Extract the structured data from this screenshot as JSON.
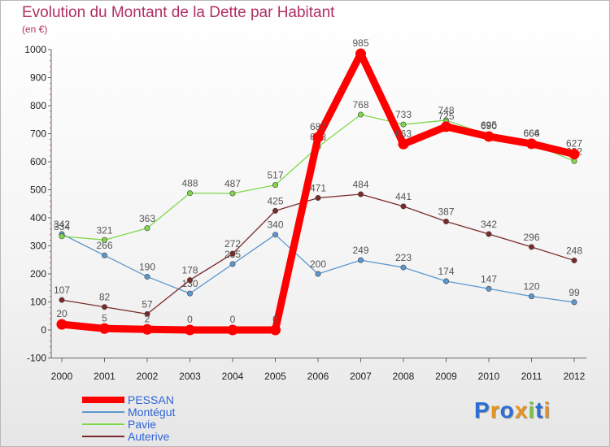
{
  "title": "Evolution du Montant de la Dette par Habitant",
  "unit": "(en €)",
  "logo": {
    "text": "Proxiti",
    "colors": [
      "#2a6fd6",
      "#e8941a",
      "#2a6fd6",
      "#e8941a",
      "#7cc242",
      "#2a6fd6",
      "#e8941a"
    ]
  },
  "chart_data": {
    "type": "line",
    "title": "Evolution du Montant de la Dette par Habitant",
    "ylabel": "(en €)",
    "xlabel": "",
    "x": [
      "2000",
      "2001",
      "2002",
      "2003",
      "2004",
      "2005",
      "2006",
      "2007",
      "2008",
      "2009",
      "2010",
      "2011",
      "2012"
    ],
    "ylim": [
      -100,
      1000
    ],
    "yticks": [
      -100,
      0,
      100,
      200,
      300,
      400,
      500,
      600,
      700,
      800,
      900,
      1000
    ],
    "grid": false,
    "legend_position": "bottom-left",
    "series": [
      {
        "name": "PESSAN",
        "color": "#ff0000",
        "values": [
          20,
          5,
          2,
          0,
          0,
          0,
          687,
          985,
          663,
          725,
          690,
          664,
          627
        ]
      },
      {
        "name": "Montégut",
        "color": "#5b97cf",
        "values": [
          342,
          266,
          190,
          130,
          235,
          340,
          200,
          249,
          223,
          174,
          147,
          120,
          99
        ]
      },
      {
        "name": "Pavie",
        "color": "#7ed84a",
        "values": [
          334,
          321,
          363,
          488,
          487,
          517,
          653,
          768,
          733,
          748,
          695,
          666,
          602
        ]
      },
      {
        "name": "Auterive",
        "color": "#7a2a2a",
        "values": [
          107,
          82,
          57,
          178,
          272,
          425,
          471,
          484,
          441,
          387,
          342,
          296,
          248
        ]
      }
    ]
  }
}
